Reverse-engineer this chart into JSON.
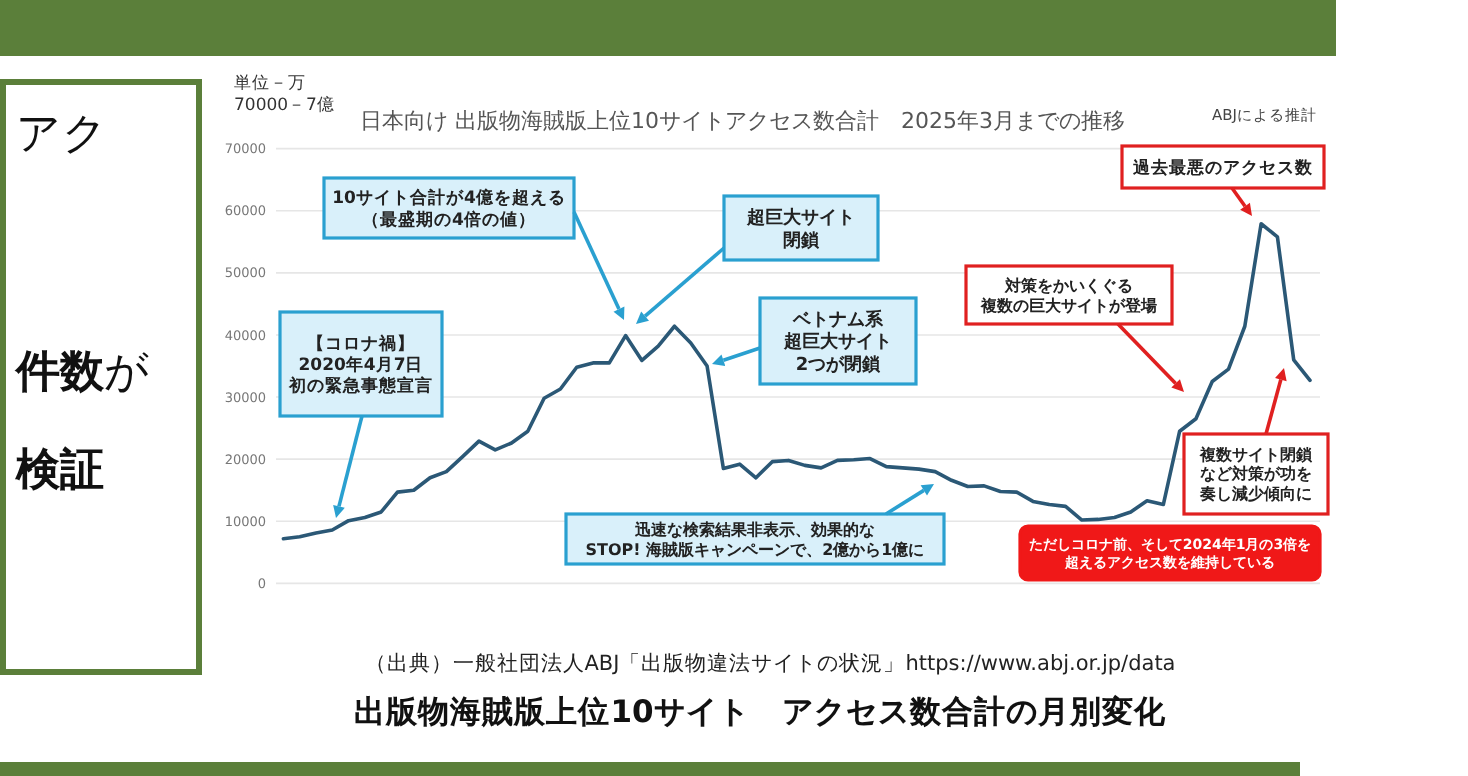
{
  "chart_data": {
    "type": "line",
    "title": "日本向け 出版物海賊版上位10サイトアクセス数合計　2025年3月までの推移",
    "categories": [
      null,
      null,
      null,
      null,
      null,
      null,
      null,
      null,
      null,
      null,
      null,
      null,
      null,
      null,
      null,
      null,
      null,
      null,
      null,
      null,
      null,
      null,
      null,
      null,
      null,
      null,
      null,
      null,
      null,
      null,
      null,
      null,
      null,
      null,
      null,
      null,
      null,
      null,
      null,
      null,
      null,
      null,
      null,
      null,
      null,
      null,
      null,
      null,
      null,
      null,
      null,
      null,
      null,
      null,
      null,
      null,
      null,
      null,
      null,
      null,
      null,
      null,
      null,
      null
    ],
    "values": [
      7200,
      7500,
      8100,
      8600,
      10100,
      10600,
      11500,
      14700,
      15000,
      17000,
      18000,
      20400,
      22900,
      21500,
      22600,
      24500,
      29800,
      31300,
      34800,
      35500,
      35500,
      39900,
      35900,
      38200,
      41400,
      38700,
      35000,
      18500,
      19200,
      17000,
      19600,
      19800,
      19000,
      18600,
      19800,
      19900,
      20100,
      18800,
      18600,
      18400,
      18000,
      16600,
      15600,
      15700,
      14800,
      14700,
      13200,
      12700,
      12400,
      10200,
      10300,
      10600,
      11500,
      13300,
      12700,
      24500,
      26500,
      32500,
      34500,
      41400,
      57900,
      55800,
      36000,
      32700
    ],
    "color": "#2b5876",
    "ylim": [
      0,
      70000
    ],
    "yticks": [
      0,
      10000,
      20000,
      30000,
      40000,
      50000,
      60000,
      70000
    ],
    "grid": "y",
    "annotations": [
      "単位－万",
      "70000－7億",
      "ABJによる推計",
      "10サイト合計が4億を超える（最盛期の4倍の値）",
      "超巨大サイト閉鎖",
      "【コロナ禍】2020年4月7日初の緊急事態宣言",
      "ベトナム系超巨大サイト2つが閉鎖",
      "迅速な検索結果非表示、効果的なSTOP! 海賊版キャンペーンで、2億から1億に",
      "過去最悪のアクセス数",
      "対策をかいくぐる複数の巨大サイトが登場",
      "複数サイト閉鎖など対策が功を奏し減少傾向に",
      "ただしコロナ前、そして2024年1月の3倍を超えるアクセス数を維持している",
      "（出典）一般社団法人ABJ「出版物違法サイトの状況」https://www.abj.or.jp/data",
      "出版物海賊版上位10サイト　アクセス数合計の月別変化",
      "アク",
      "**件数**が",
      "検証"
    ]
  }
}
